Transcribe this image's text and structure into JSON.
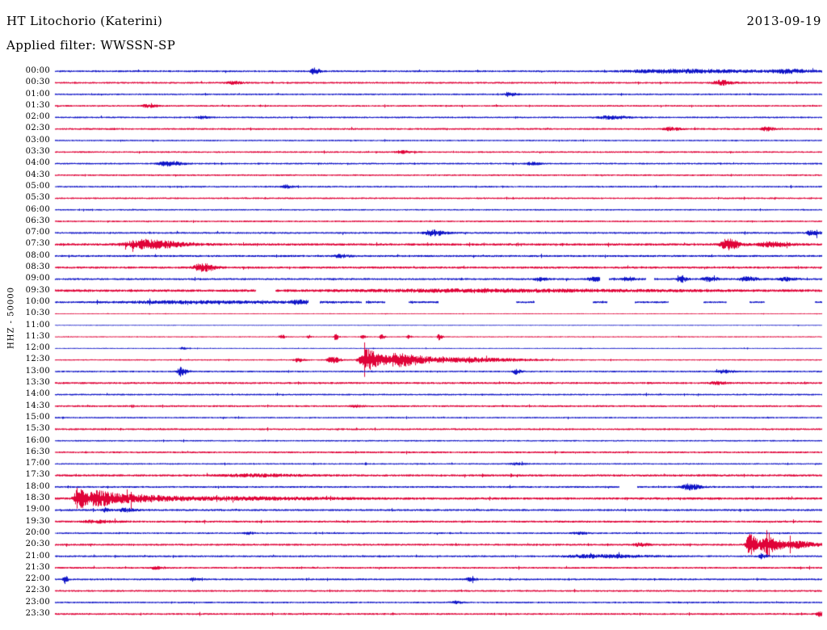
{
  "header": {
    "title": "HT Litochorio (Katerini)",
    "date": "2013-09-19",
    "filter_label": "Applied filter: WWSSN-SP"
  },
  "axis": {
    "scale_label": "HHZ - 50000"
  },
  "colors": {
    "blue": "#1015c8",
    "red": "#e00338",
    "text": "#000000",
    "background": "#ffffff"
  },
  "chart_data": {
    "type": "line",
    "subtype": "helicorder",
    "station": "HT Litochorio (Katerini)",
    "date": "2013-09-19",
    "filter": "WWSSN-SP",
    "channel_scale": "HHZ - 50000",
    "row_interval_minutes": 30,
    "rows_count": 48,
    "colors_cycle": [
      "blue",
      "red"
    ],
    "legend": "events: p = position along 30-min row (0-1), a = amplitude (px), w = envelope width; gaps = data dropouts",
    "rows": [
      {
        "label": "00:00",
        "color": "blue",
        "noise": 0.9,
        "events": [
          {
            "p": 0.337,
            "a": 3.5,
            "w": 0.006
          },
          {
            "p": 0.8,
            "a": 2.0,
            "w": 0.09
          },
          {
            "p": 0.95,
            "a": 2.0,
            "w": 0.025
          }
        ]
      },
      {
        "label": "00:30",
        "color": "red",
        "noise": 0.9,
        "events": [
          {
            "p": 0.23,
            "a": 1.4,
            "w": 0.01
          },
          {
            "p": 0.865,
            "a": 3.0,
            "w": 0.012
          }
        ]
      },
      {
        "label": "01:00",
        "color": "blue",
        "noise": 0.8,
        "events": [
          {
            "p": 0.59,
            "a": 2.4,
            "w": 0.007
          }
        ]
      },
      {
        "label": "01:30",
        "color": "red",
        "noise": 0.8,
        "events": [
          {
            "p": 0.12,
            "a": 1.8,
            "w": 0.01
          }
        ]
      },
      {
        "label": "02:00",
        "color": "blue",
        "noise": 0.8,
        "events": [
          {
            "p": 0.19,
            "a": 1.5,
            "w": 0.008
          },
          {
            "p": 0.72,
            "a": 2.0,
            "w": 0.02
          }
        ]
      },
      {
        "label": "02:30",
        "color": "red",
        "noise": 0.9,
        "events": [
          {
            "p": 0.8,
            "a": 2.0,
            "w": 0.01
          },
          {
            "p": 0.925,
            "a": 2.2,
            "w": 0.008
          }
        ]
      },
      {
        "label": "03:00",
        "color": "blue",
        "noise": 0.7,
        "events": []
      },
      {
        "label": "03:30",
        "color": "red",
        "noise": 0.8,
        "events": [
          {
            "p": 0.45,
            "a": 1.4,
            "w": 0.01
          }
        ]
      },
      {
        "label": "04:00",
        "color": "blue",
        "noise": 0.8,
        "events": [
          {
            "p": 0.145,
            "a": 3.0,
            "w": 0.014
          },
          {
            "p": 0.62,
            "a": 1.8,
            "w": 0.008
          }
        ]
      },
      {
        "label": "04:30",
        "color": "red",
        "noise": 0.8,
        "events": []
      },
      {
        "label": "05:00",
        "color": "blue",
        "noise": 0.8,
        "events": [
          {
            "p": 0.3,
            "a": 2.0,
            "w": 0.006
          }
        ]
      },
      {
        "label": "05:30",
        "color": "red",
        "noise": 0.8,
        "events": []
      },
      {
        "label": "06:00",
        "color": "blue",
        "noise": 0.7,
        "events": []
      },
      {
        "label": "06:30",
        "color": "red",
        "noise": 0.8,
        "events": []
      },
      {
        "label": "07:00",
        "color": "blue",
        "noise": 0.9,
        "events": [
          {
            "p": 0.49,
            "a": 3.2,
            "w": 0.014
          },
          {
            "p": 0.985,
            "a": 3.4,
            "w": 0.008
          }
        ]
      },
      {
        "label": "07:30",
        "color": "red",
        "noise": 1.2,
        "events": [
          {
            "p": 0.115,
            "a": 5.5,
            "w": 0.035
          },
          {
            "p": 0.875,
            "a": 7.0,
            "w": 0.012
          },
          {
            "p": 0.93,
            "a": 2.6,
            "w": 0.02
          }
        ]
      },
      {
        "label": "08:00",
        "color": "blue",
        "noise": 1.0,
        "events": [
          {
            "p": 0.37,
            "a": 1.7,
            "w": 0.01
          }
        ]
      },
      {
        "label": "08:30",
        "color": "red",
        "noise": 1.1,
        "events": [
          {
            "p": 0.19,
            "a": 4.5,
            "w": 0.014
          }
        ]
      },
      {
        "label": "09:00",
        "color": "blue",
        "noise": 1.0,
        "events": [
          {
            "p": 0.63,
            "a": 2.0,
            "w": 0.008
          },
          {
            "p": 0.7,
            "a": 2.4,
            "w": 0.01
          },
          {
            "p": 0.745,
            "a": 2.4,
            "w": 0.008
          },
          {
            "p": 0.815,
            "a": 4.5,
            "w": 0.005
          },
          {
            "p": 0.85,
            "a": 2.4,
            "w": 0.01
          },
          {
            "p": 0.9,
            "a": 2.4,
            "w": 0.012
          },
          {
            "p": 0.95,
            "a": 2.0,
            "w": 0.01
          }
        ],
        "gaps": [
          [
            0.71,
            0.722
          ],
          [
            0.77,
            0.78
          ]
        ]
      },
      {
        "label": "09:30",
        "color": "red",
        "noise": 1.3,
        "events": [
          {
            "p": 0.52,
            "a": 1.2,
            "w": 0.2
          }
        ],
        "gaps": [
          [
            0.262,
            0.287
          ]
        ]
      },
      {
        "label": "10:00",
        "color": "blue",
        "noise": 1.0,
        "events": [
          {
            "p": 0.16,
            "a": 1.3,
            "w": 0.12
          },
          {
            "p": 0.315,
            "a": 1.8,
            "w": 0.012
          }
        ],
        "gaps": [
          [
            0.33,
            0.345
          ],
          [
            0.4,
            0.405
          ],
          [
            0.43,
            0.46
          ],
          [
            0.5,
            0.6
          ],
          [
            0.625,
            0.7
          ],
          [
            0.72,
            0.755
          ],
          [
            0.8,
            0.845
          ],
          [
            0.875,
            0.905
          ],
          [
            0.925,
            0.99
          ]
        ]
      },
      {
        "label": "10:30",
        "color": "red",
        "noise": 0.35,
        "events": []
      },
      {
        "label": "11:00",
        "color": "blue",
        "noise": 0.35,
        "events": []
      },
      {
        "label": "11:30",
        "color": "red",
        "noise": 0.5,
        "events": [
          {
            "p": 0.295,
            "a": 3.0,
            "w": 0.003
          },
          {
            "p": 0.33,
            "a": 2.0,
            "w": 0.003
          },
          {
            "p": 0.365,
            "a": 3.8,
            "w": 0.003
          },
          {
            "p": 0.4,
            "a": 2.4,
            "w": 0.003
          },
          {
            "p": 0.425,
            "a": 3.0,
            "w": 0.003
          },
          {
            "p": 0.46,
            "a": 2.0,
            "w": 0.003
          },
          {
            "p": 0.5,
            "a": 3.8,
            "w": 0.003
          }
        ]
      },
      {
        "label": "12:00",
        "color": "blue",
        "noise": 0.4,
        "events": [
          {
            "p": 0.165,
            "a": 1.4,
            "w": 0.004
          }
        ]
      },
      {
        "label": "12:30",
        "color": "red",
        "noise": 0.6,
        "events": [
          {
            "p": 0.315,
            "a": 2.5,
            "w": 0.006
          },
          {
            "p": 0.36,
            "a": 4.0,
            "w": 0.008
          },
          {
            "p": 0.405,
            "a": 13.0,
            "w": 0.012
          },
          {
            "p": 0.445,
            "a": 8.0,
            "w": 0.03
          },
          {
            "p": 0.53,
            "a": 2.5,
            "w": 0.06
          }
        ]
      },
      {
        "label": "13:00",
        "color": "blue",
        "noise": 0.8,
        "events": [
          {
            "p": 0.163,
            "a": 5.5,
            "w": 0.006
          },
          {
            "p": 0.6,
            "a": 3.0,
            "w": 0.005
          },
          {
            "p": 0.87,
            "a": 1.7,
            "w": 0.01
          }
        ]
      },
      {
        "label": "13:30",
        "color": "red",
        "noise": 1.0,
        "events": [
          {
            "p": 0.86,
            "a": 1.6,
            "w": 0.01
          }
        ]
      },
      {
        "label": "14:00",
        "color": "blue",
        "noise": 0.8,
        "events": []
      },
      {
        "label": "14:30",
        "color": "red",
        "noise": 0.9,
        "events": [
          {
            "p": 0.39,
            "a": 1.4,
            "w": 0.008
          }
        ]
      },
      {
        "label": "15:00",
        "color": "blue",
        "noise": 0.7,
        "events": []
      },
      {
        "label": "15:30",
        "color": "red",
        "noise": 0.9,
        "events": []
      },
      {
        "label": "16:00",
        "color": "blue",
        "noise": 0.7,
        "events": []
      },
      {
        "label": "16:30",
        "color": "red",
        "noise": 0.9,
        "events": []
      },
      {
        "label": "17:00",
        "color": "blue",
        "noise": 0.7,
        "events": [
          {
            "p": 0.6,
            "a": 1.4,
            "w": 0.008
          }
        ]
      },
      {
        "label": "17:30",
        "color": "red",
        "noise": 1.1,
        "events": [
          {
            "p": 0.25,
            "a": 1.3,
            "w": 0.05
          }
        ]
      },
      {
        "label": "18:00",
        "color": "blue",
        "noise": 0.9,
        "events": [
          {
            "p": 0.825,
            "a": 3.4,
            "w": 0.012
          }
        ],
        "gaps": [
          [
            0.735,
            0.758
          ]
        ]
      },
      {
        "label": "18:30",
        "color": "red",
        "noise": 1.2,
        "events": [
          {
            "p": 0.03,
            "a": 13.0,
            "w": 0.008
          },
          {
            "p": 0.055,
            "a": 9.0,
            "w": 0.018
          },
          {
            "p": 0.1,
            "a": 4.0,
            "w": 0.04
          },
          {
            "p": 0.22,
            "a": 1.6,
            "w": 0.1
          }
        ]
      },
      {
        "label": "19:00",
        "color": "blue",
        "noise": 1.0,
        "events": [
          {
            "p": 0.065,
            "a": 2.4,
            "w": 0.005
          },
          {
            "p": 0.09,
            "a": 2.0,
            "w": 0.01
          }
        ]
      },
      {
        "label": "19:30",
        "color": "red",
        "noise": 1.0,
        "events": [
          {
            "p": 0.05,
            "a": 1.4,
            "w": 0.02
          }
        ]
      },
      {
        "label": "20:00",
        "color": "blue",
        "noise": 0.8,
        "events": [
          {
            "p": 0.25,
            "a": 1.4,
            "w": 0.006
          },
          {
            "p": 0.68,
            "a": 1.4,
            "w": 0.01
          }
        ]
      },
      {
        "label": "20:30",
        "color": "red",
        "noise": 1.0,
        "events": [
          {
            "p": 0.76,
            "a": 1.7,
            "w": 0.01
          },
          {
            "p": 0.905,
            "a": 13.0,
            "w": 0.007
          },
          {
            "p": 0.928,
            "a": 9.5,
            "w": 0.014
          },
          {
            "p": 0.965,
            "a": 4.0,
            "w": 0.02
          }
        ]
      },
      {
        "label": "21:00",
        "color": "blue",
        "noise": 0.9,
        "events": [
          {
            "p": 0.7,
            "a": 1.7,
            "w": 0.05
          },
          {
            "p": 0.92,
            "a": 2.8,
            "w": 0.005
          }
        ]
      },
      {
        "label": "21:30",
        "color": "red",
        "noise": 0.9,
        "events": [
          {
            "p": 0.13,
            "a": 1.4,
            "w": 0.008
          }
        ]
      },
      {
        "label": "22:00",
        "color": "blue",
        "noise": 0.9,
        "events": [
          {
            "p": 0.012,
            "a": 5.0,
            "w": 0.003
          },
          {
            "p": 0.18,
            "a": 2.0,
            "w": 0.005
          },
          {
            "p": 0.54,
            "a": 2.0,
            "w": 0.007
          }
        ]
      },
      {
        "label": "22:30",
        "color": "red",
        "noise": 0.9,
        "events": []
      },
      {
        "label": "23:00",
        "color": "blue",
        "noise": 0.8,
        "events": [
          {
            "p": 0.52,
            "a": 1.4,
            "w": 0.008
          }
        ]
      },
      {
        "label": "23:30",
        "color": "red",
        "noise": 0.9,
        "events": [
          {
            "p": 0.995,
            "a": 3.0,
            "w": 0.005
          }
        ]
      }
    ]
  }
}
